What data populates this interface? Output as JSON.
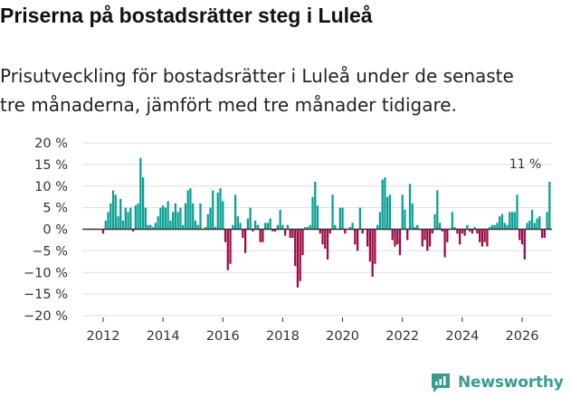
{
  "title": "Priserna på bostadsrätter steg i Luleå",
  "subtitle_line1": "Prisutveckling för bostadsrätter i Luleå under de senaste",
  "subtitle_line2": "tre månaderna, jämfört med tre månader tidigare.",
  "brand": "Newsworthy",
  "colors": {
    "positive": "#0a9f93",
    "negative": "#9c0b45",
    "grid": "#dedede",
    "zero": "#333333",
    "brand": "#3a9c8f"
  },
  "chart_data": {
    "type": "bar",
    "title": "Prisutveckling för bostadsrätter i Luleå",
    "xlabel": "",
    "ylabel": "",
    "ylim": [
      -20,
      20
    ],
    "yticks": [
      20,
      15,
      10,
      5,
      0,
      -5,
      -10,
      -15,
      -20
    ],
    "ytick_labels": [
      "20 %",
      "15 %",
      "10 %",
      "5 %",
      "0 %",
      "−5 %",
      "−10 %",
      "−15 %",
      "−20 %"
    ],
    "xticks": [
      2012,
      2014,
      2016,
      2018,
      2020,
      2022,
      2024,
      2026
    ],
    "xtick_labels": [
      "2012",
      "2014",
      "2016",
      "2018",
      "2020",
      "2022",
      "2024",
      "2026"
    ],
    "start_year": 2012,
    "start_month": 1,
    "frequency": "monthly",
    "annotation": {
      "text": "11 %",
      "month_index": 170,
      "value": 11
    },
    "values": [
      -1,
      2,
      4,
      6,
      9,
      8,
      3,
      7,
      2,
      5,
      4,
      5,
      -0.5,
      5.5,
      6,
      16.5,
      12,
      5,
      1,
      1,
      0.5,
      1.5,
      3,
      5,
      5.5,
      5,
      6.5,
      2,
      4,
      6,
      4,
      5,
      1,
      6,
      9,
      9.5,
      6,
      2,
      1,
      6,
      0,
      0.5,
      3.5,
      5,
      9,
      0.5,
      8.5,
      9.5,
      6.5,
      -3,
      -9.5,
      -8,
      1,
      8,
      3,
      1.5,
      -2,
      -5.5,
      2.5,
      5,
      -0.5,
      2,
      1,
      -3,
      -3,
      1.5,
      1.5,
      2.5,
      -0.5,
      -0.5,
      1,
      4.5,
      1,
      -1.5,
      1,
      -2,
      -2,
      -8.5,
      -13.5,
      -12,
      -6,
      0.5,
      0.5,
      1,
      7.5,
      11,
      5.5,
      -1,
      -3.5,
      -4.5,
      -7,
      -1,
      8,
      1,
      0,
      5,
      5,
      -1,
      0,
      0.5,
      1.5,
      -3.5,
      -5,
      5,
      -1,
      0,
      -4,
      -7.5,
      -11,
      -8,
      1,
      4,
      11.5,
      12,
      7.5,
      8,
      -2.5,
      -4,
      -3.5,
      -6,
      8,
      4.5,
      -2.5,
      10.5,
      6,
      0.5,
      1,
      0,
      -4,
      -2.5,
      -5,
      -4,
      -1,
      3.5,
      9,
      1.5,
      -0.5,
      -6.5,
      -3,
      0,
      4,
      0.5,
      -1,
      -3.5,
      -1,
      -1.5,
      1,
      -0.5,
      -1,
      0.5,
      -1,
      -3,
      -4,
      -3,
      -4,
      0.5,
      1,
      1,
      1.5,
      3,
      3.5,
      1.5,
      1,
      4,
      4,
      4,
      8,
      -2.5,
      -3.5,
      -7,
      1.5,
      2,
      4.5,
      1.5,
      2.5,
      3,
      -2,
      -2,
      4,
      11
    ]
  }
}
